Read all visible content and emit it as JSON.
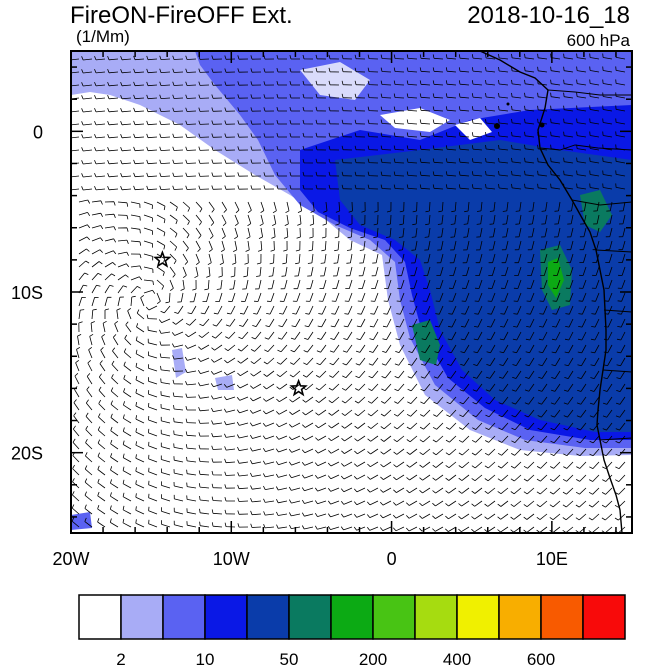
{
  "header": {
    "title": "FireON-FireOFF Ext.",
    "units": "(1/Mm)",
    "datetime": "2018-10-16_18",
    "level": "600 hPa"
  },
  "map": {
    "lon_range": [
      -20,
      15
    ],
    "lat_range": [
      -25,
      5
    ],
    "lon_ticks": [
      {
        "value": -20,
        "label": "20W"
      },
      {
        "value": -10,
        "label": "10W"
      },
      {
        "value": 0,
        "label": "0"
      },
      {
        "value": 10,
        "label": "10E"
      }
    ],
    "lat_ticks": [
      {
        "value": 0,
        "label": "0"
      },
      {
        "value": -10,
        "label": "10S"
      },
      {
        "value": -20,
        "label": "20S"
      }
    ],
    "markers": [
      {
        "name": "star-marker-1",
        "lon": -14.3,
        "lat": -8.0
      },
      {
        "name": "star-marker-2",
        "lon": -5.8,
        "lat": -16.0
      }
    ],
    "features": [
      "wind-barbs",
      "coastline"
    ]
  },
  "colorbar": {
    "colors": [
      "#ffffff",
      "#a8acf6",
      "#5a62f2",
      "#0a18e6",
      "#0a3caa",
      "#0a7a60",
      "#0caa14",
      "#48c414",
      "#a6dc10",
      "#f0f000",
      "#f8ae00",
      "#f85a00",
      "#f80a0a"
    ],
    "labels": [
      {
        "after_box": 1,
        "text": "2"
      },
      {
        "after_box": 3,
        "text": "10"
      },
      {
        "after_box": 5,
        "text": "50"
      },
      {
        "after_box": 7,
        "text": "200"
      },
      {
        "after_box": 9,
        "text": "400"
      },
      {
        "after_box": 11,
        "text": "600"
      }
    ]
  }
}
